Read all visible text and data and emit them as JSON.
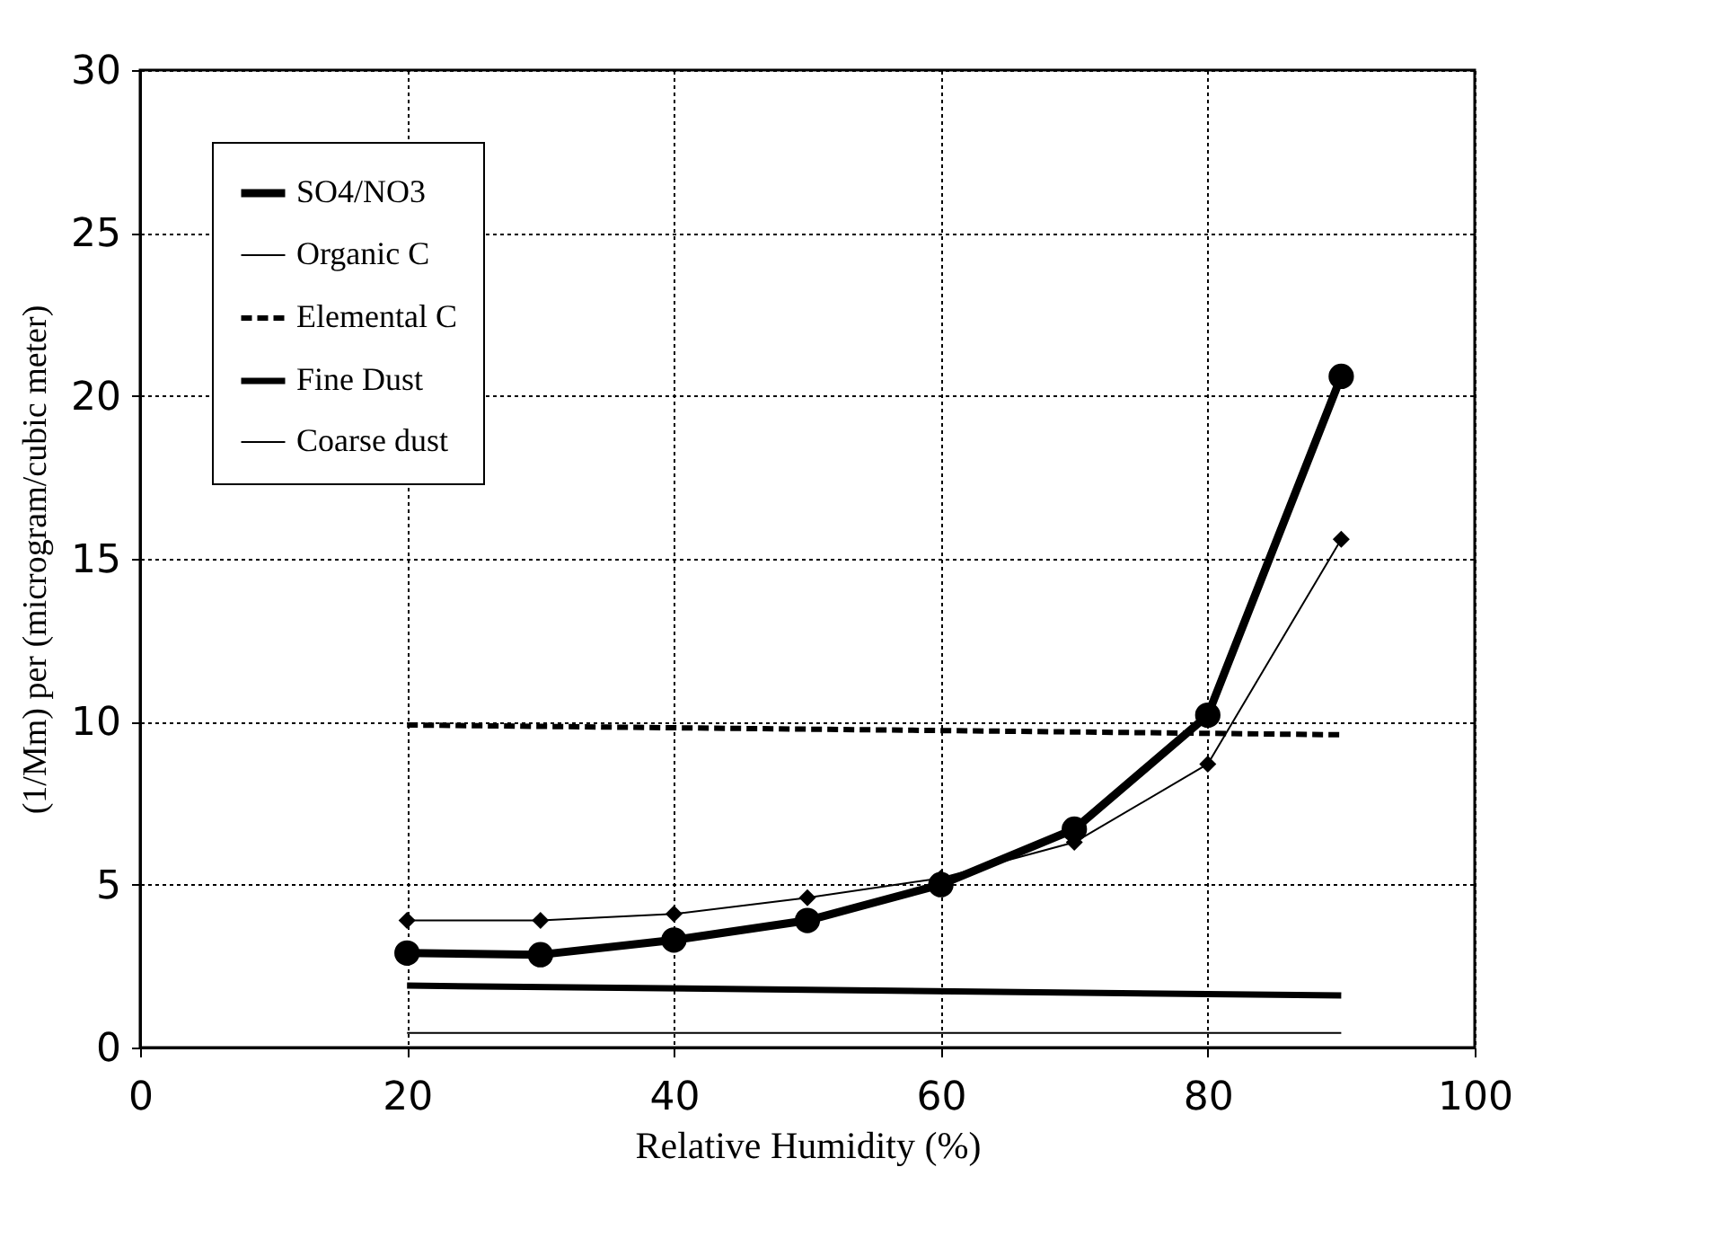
{
  "chart_data": {
    "type": "line",
    "xlabel": "Relative Humidity (%)",
    "ylabel": "(1/Mm) per (microgram/cubic meter)",
    "xlim": [
      0,
      100
    ],
    "xticks": [
      0,
      20,
      40,
      60,
      80,
      100
    ],
    "ylim": [
      0,
      30
    ],
    "yticks": [
      0,
      5,
      10,
      15,
      20,
      25,
      30
    ],
    "grid": true,
    "legend": "top left",
    "series": [
      {
        "name": "SO4/NO3",
        "color": "#000000",
        "marker": "circle",
        "line_style": "solid",
        "x": [
          20,
          30,
          40,
          50,
          60,
          70,
          80,
          90
        ],
        "values": [
          2.9,
          2.85,
          3.3,
          3.9,
          5.0,
          6.7,
          10.2,
          20.6
        ]
      },
      {
        "name": "Organic C",
        "color": "#000000",
        "marker": "diamond",
        "line_style": "solid",
        "x": [
          20,
          30,
          40,
          50,
          60,
          70,
          80,
          90
        ],
        "values": [
          3.9,
          3.9,
          4.1,
          4.6,
          5.2,
          6.3,
          8.7,
          15.6
        ]
      },
      {
        "name": "Elemental C",
        "color": "#000000",
        "marker": "none",
        "line_style": "dashed",
        "x": [
          20,
          90
        ],
        "values": [
          9.9,
          9.6
        ]
      },
      {
        "name": "Fine Dust",
        "color": "#000000",
        "marker": "none",
        "line_style": "solid",
        "x": [
          20,
          90
        ],
        "values": [
          1.9,
          1.6
        ]
      },
      {
        "name": "Coarse dust",
        "color": "#000000",
        "marker": "none",
        "line_style": "solid",
        "x": [
          20,
          90
        ],
        "values": [
          0.45,
          0.45
        ]
      }
    ]
  }
}
